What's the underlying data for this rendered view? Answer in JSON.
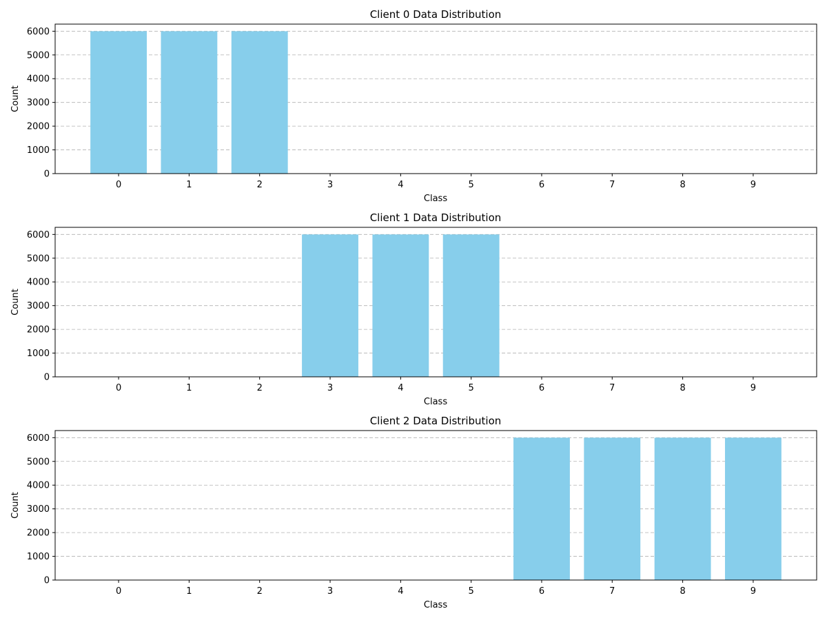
{
  "chart_data": [
    {
      "type": "bar",
      "title": "Client 0 Data Distribution",
      "xlabel": "Class",
      "ylabel": "Count",
      "categories": [
        "0",
        "1",
        "2",
        "3",
        "4",
        "5",
        "6",
        "7",
        "8",
        "9"
      ],
      "values": [
        6000,
        6000,
        6000,
        0,
        0,
        0,
        0,
        0,
        0,
        0
      ],
      "ylim": [
        0,
        6300
      ],
      "yticks": [
        0,
        1000,
        2000,
        3000,
        4000,
        5000,
        6000
      ],
      "grid": "y-dashed",
      "bar_color": "#87ceeb"
    },
    {
      "type": "bar",
      "title": "Client 1 Data Distribution",
      "xlabel": "Class",
      "ylabel": "Count",
      "categories": [
        "0",
        "1",
        "2",
        "3",
        "4",
        "5",
        "6",
        "7",
        "8",
        "9"
      ],
      "values": [
        0,
        0,
        0,
        6000,
        6000,
        6000,
        0,
        0,
        0,
        0
      ],
      "ylim": [
        0,
        6300
      ],
      "yticks": [
        0,
        1000,
        2000,
        3000,
        4000,
        5000,
        6000
      ],
      "grid": "y-dashed",
      "bar_color": "#87ceeb"
    },
    {
      "type": "bar",
      "title": "Client 2 Data Distribution",
      "xlabel": "Class",
      "ylabel": "Count",
      "categories": [
        "0",
        "1",
        "2",
        "3",
        "4",
        "5",
        "6",
        "7",
        "8",
        "9"
      ],
      "values": [
        0,
        0,
        0,
        0,
        0,
        0,
        6000,
        6000,
        6000,
        6000
      ],
      "ylim": [
        0,
        6300
      ],
      "yticks": [
        0,
        1000,
        2000,
        3000,
        4000,
        5000,
        6000
      ],
      "grid": "y-dashed",
      "bar_color": "#87ceeb"
    }
  ]
}
